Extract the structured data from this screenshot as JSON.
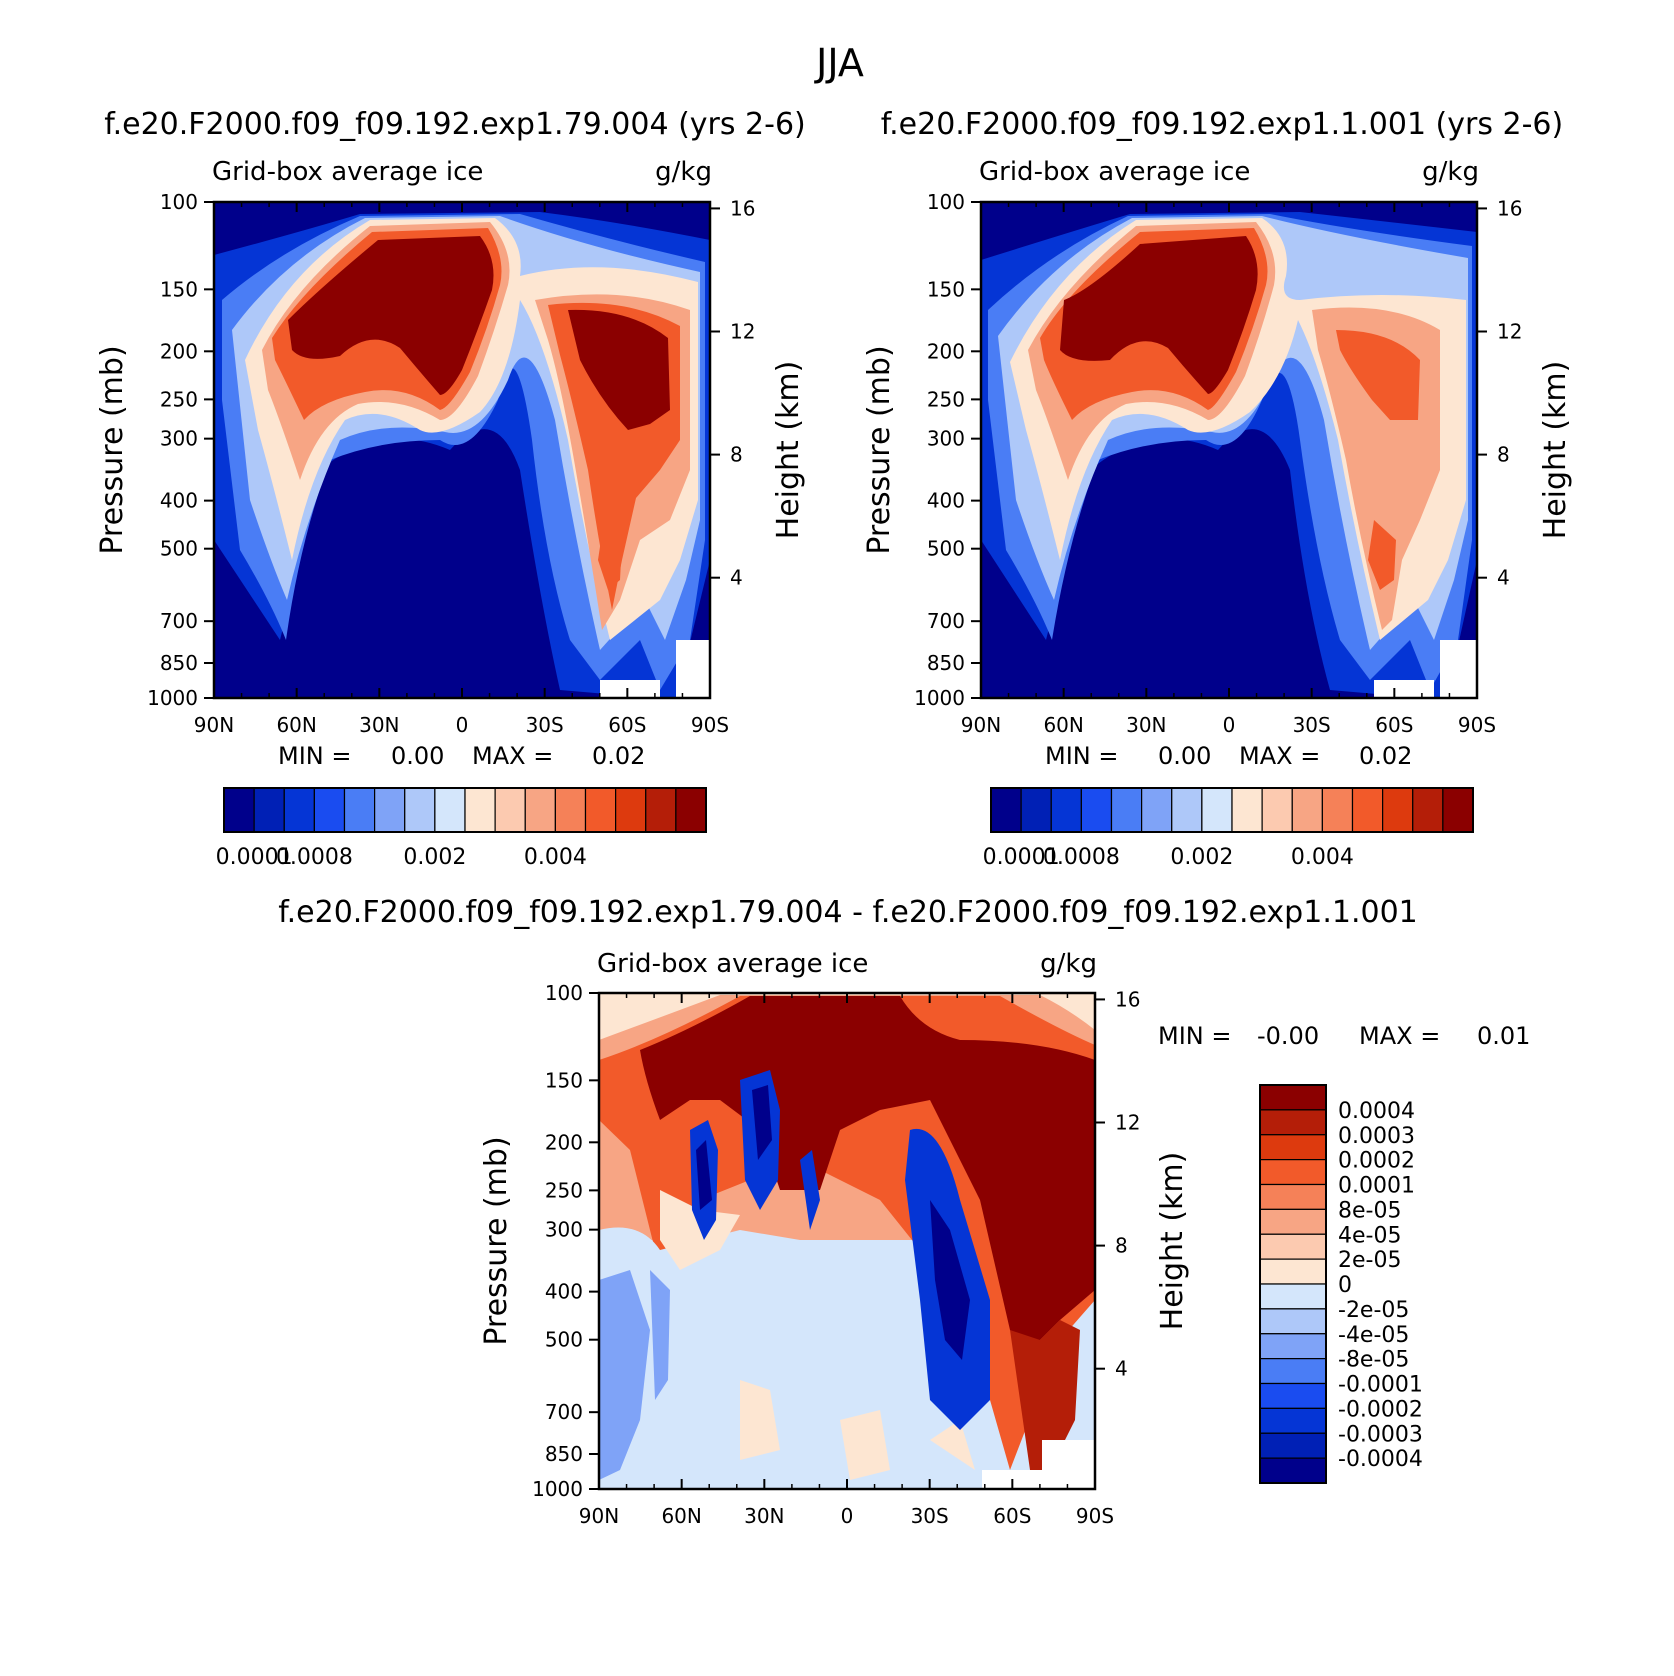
{
  "figure": {
    "title": "JJA"
  },
  "chart_data": [
    {
      "type": "heatmap",
      "id": "left",
      "title": "f.e20.F2000.f09_f09.192.exp1.79.004 (yrs 2-6)",
      "subtitle_left": "Grid-box average ice",
      "subtitle_right": "g/kg",
      "ylabel": "Pressure (mb)",
      "y2label": "Height (km)",
      "x_ticks": [
        "90N",
        "60N",
        "30N",
        "0",
        "30S",
        "60S",
        "90S"
      ],
      "y_ticks": [
        "100",
        "150",
        "200",
        "250",
        "300",
        "400",
        "500",
        "700",
        "850",
        "1000"
      ],
      "y2_ticks": [
        "16",
        "12",
        "8",
        "4"
      ],
      "min_label": "MIN =",
      "min_value": "0.00",
      "max_label": "MAX =",
      "max_value": "0.02",
      "colorbar_labels": [
        "0.0001",
        "0.0008",
        "0.002",
        "0.004"
      ],
      "colors": [
        "#00008b",
        "#0020b5",
        "#0535d5",
        "#1a4cf0",
        "#4a7df5",
        "#7fa3f7",
        "#aec8f9",
        "#d4e6fb",
        "#fde6d2",
        "#fccab0",
        "#f7a584",
        "#f58158",
        "#f25a2a",
        "#dd3a0e",
        "#b41e08",
        "#8b0000"
      ]
    },
    {
      "type": "heatmap",
      "id": "right",
      "title": "f.e20.F2000.f09_f09.192.exp1.1.001 (yrs 2-6)",
      "subtitle_left": "Grid-box average ice",
      "subtitle_right": "g/kg",
      "ylabel": "Pressure (mb)",
      "y2label": "Height (km)",
      "x_ticks": [
        "90N",
        "60N",
        "30N",
        "0",
        "30S",
        "60S",
        "90S"
      ],
      "y_ticks": [
        "100",
        "150",
        "200",
        "250",
        "300",
        "400",
        "500",
        "700",
        "850",
        "1000"
      ],
      "y2_ticks": [
        "16",
        "12",
        "8",
        "4"
      ],
      "min_label": "MIN =",
      "min_value": "0.00",
      "max_label": "MAX =",
      "max_value": "0.02",
      "colorbar_labels": [
        "0.0001",
        "0.0008",
        "0.002",
        "0.004"
      ],
      "colors": [
        "#00008b",
        "#0020b5",
        "#0535d5",
        "#1a4cf0",
        "#4a7df5",
        "#7fa3f7",
        "#aec8f9",
        "#d4e6fb",
        "#fde6d2",
        "#fccab0",
        "#f7a584",
        "#f58158",
        "#f25a2a",
        "#dd3a0e",
        "#b41e08",
        "#8b0000"
      ]
    },
    {
      "type": "heatmap",
      "id": "diff",
      "title": "f.e20.F2000.f09_f09.192.exp1.79.004 - f.e20.F2000.f09_f09.192.exp1.1.001",
      "subtitle_left": "Grid-box average ice",
      "subtitle_right": "g/kg",
      "ylabel": "Pressure (mb)",
      "y2label": "Height (km)",
      "x_ticks": [
        "90N",
        "60N",
        "30N",
        "0",
        "30S",
        "60S",
        "90S"
      ],
      "y_ticks": [
        "100",
        "150",
        "200",
        "250",
        "300",
        "400",
        "500",
        "700",
        "850",
        "1000"
      ],
      "y2_ticks": [
        "16",
        "12",
        "8",
        "4"
      ],
      "min_label": "MIN =",
      "min_value": "-0.00",
      "max_label": "MAX =",
      "max_value": "0.01",
      "colorbar_labels": [
        "0.0004",
        "0.0003",
        "0.0002",
        "0.0001",
        "8e-05",
        "4e-05",
        "2e-05",
        "0",
        "-2e-05",
        "-4e-05",
        "-8e-05",
        "-0.0001",
        "-0.0002",
        "-0.0003",
        "-0.0004"
      ],
      "colors": [
        "#8b0000",
        "#b41e08",
        "#dd3a0e",
        "#f25a2a",
        "#f58158",
        "#f7a584",
        "#fccab0",
        "#fde6d2",
        "#d4e6fb",
        "#aec8f9",
        "#7fa3f7",
        "#4a7df5",
        "#1a4cf0",
        "#0535d5",
        "#0020b5",
        "#00008b"
      ]
    }
  ]
}
